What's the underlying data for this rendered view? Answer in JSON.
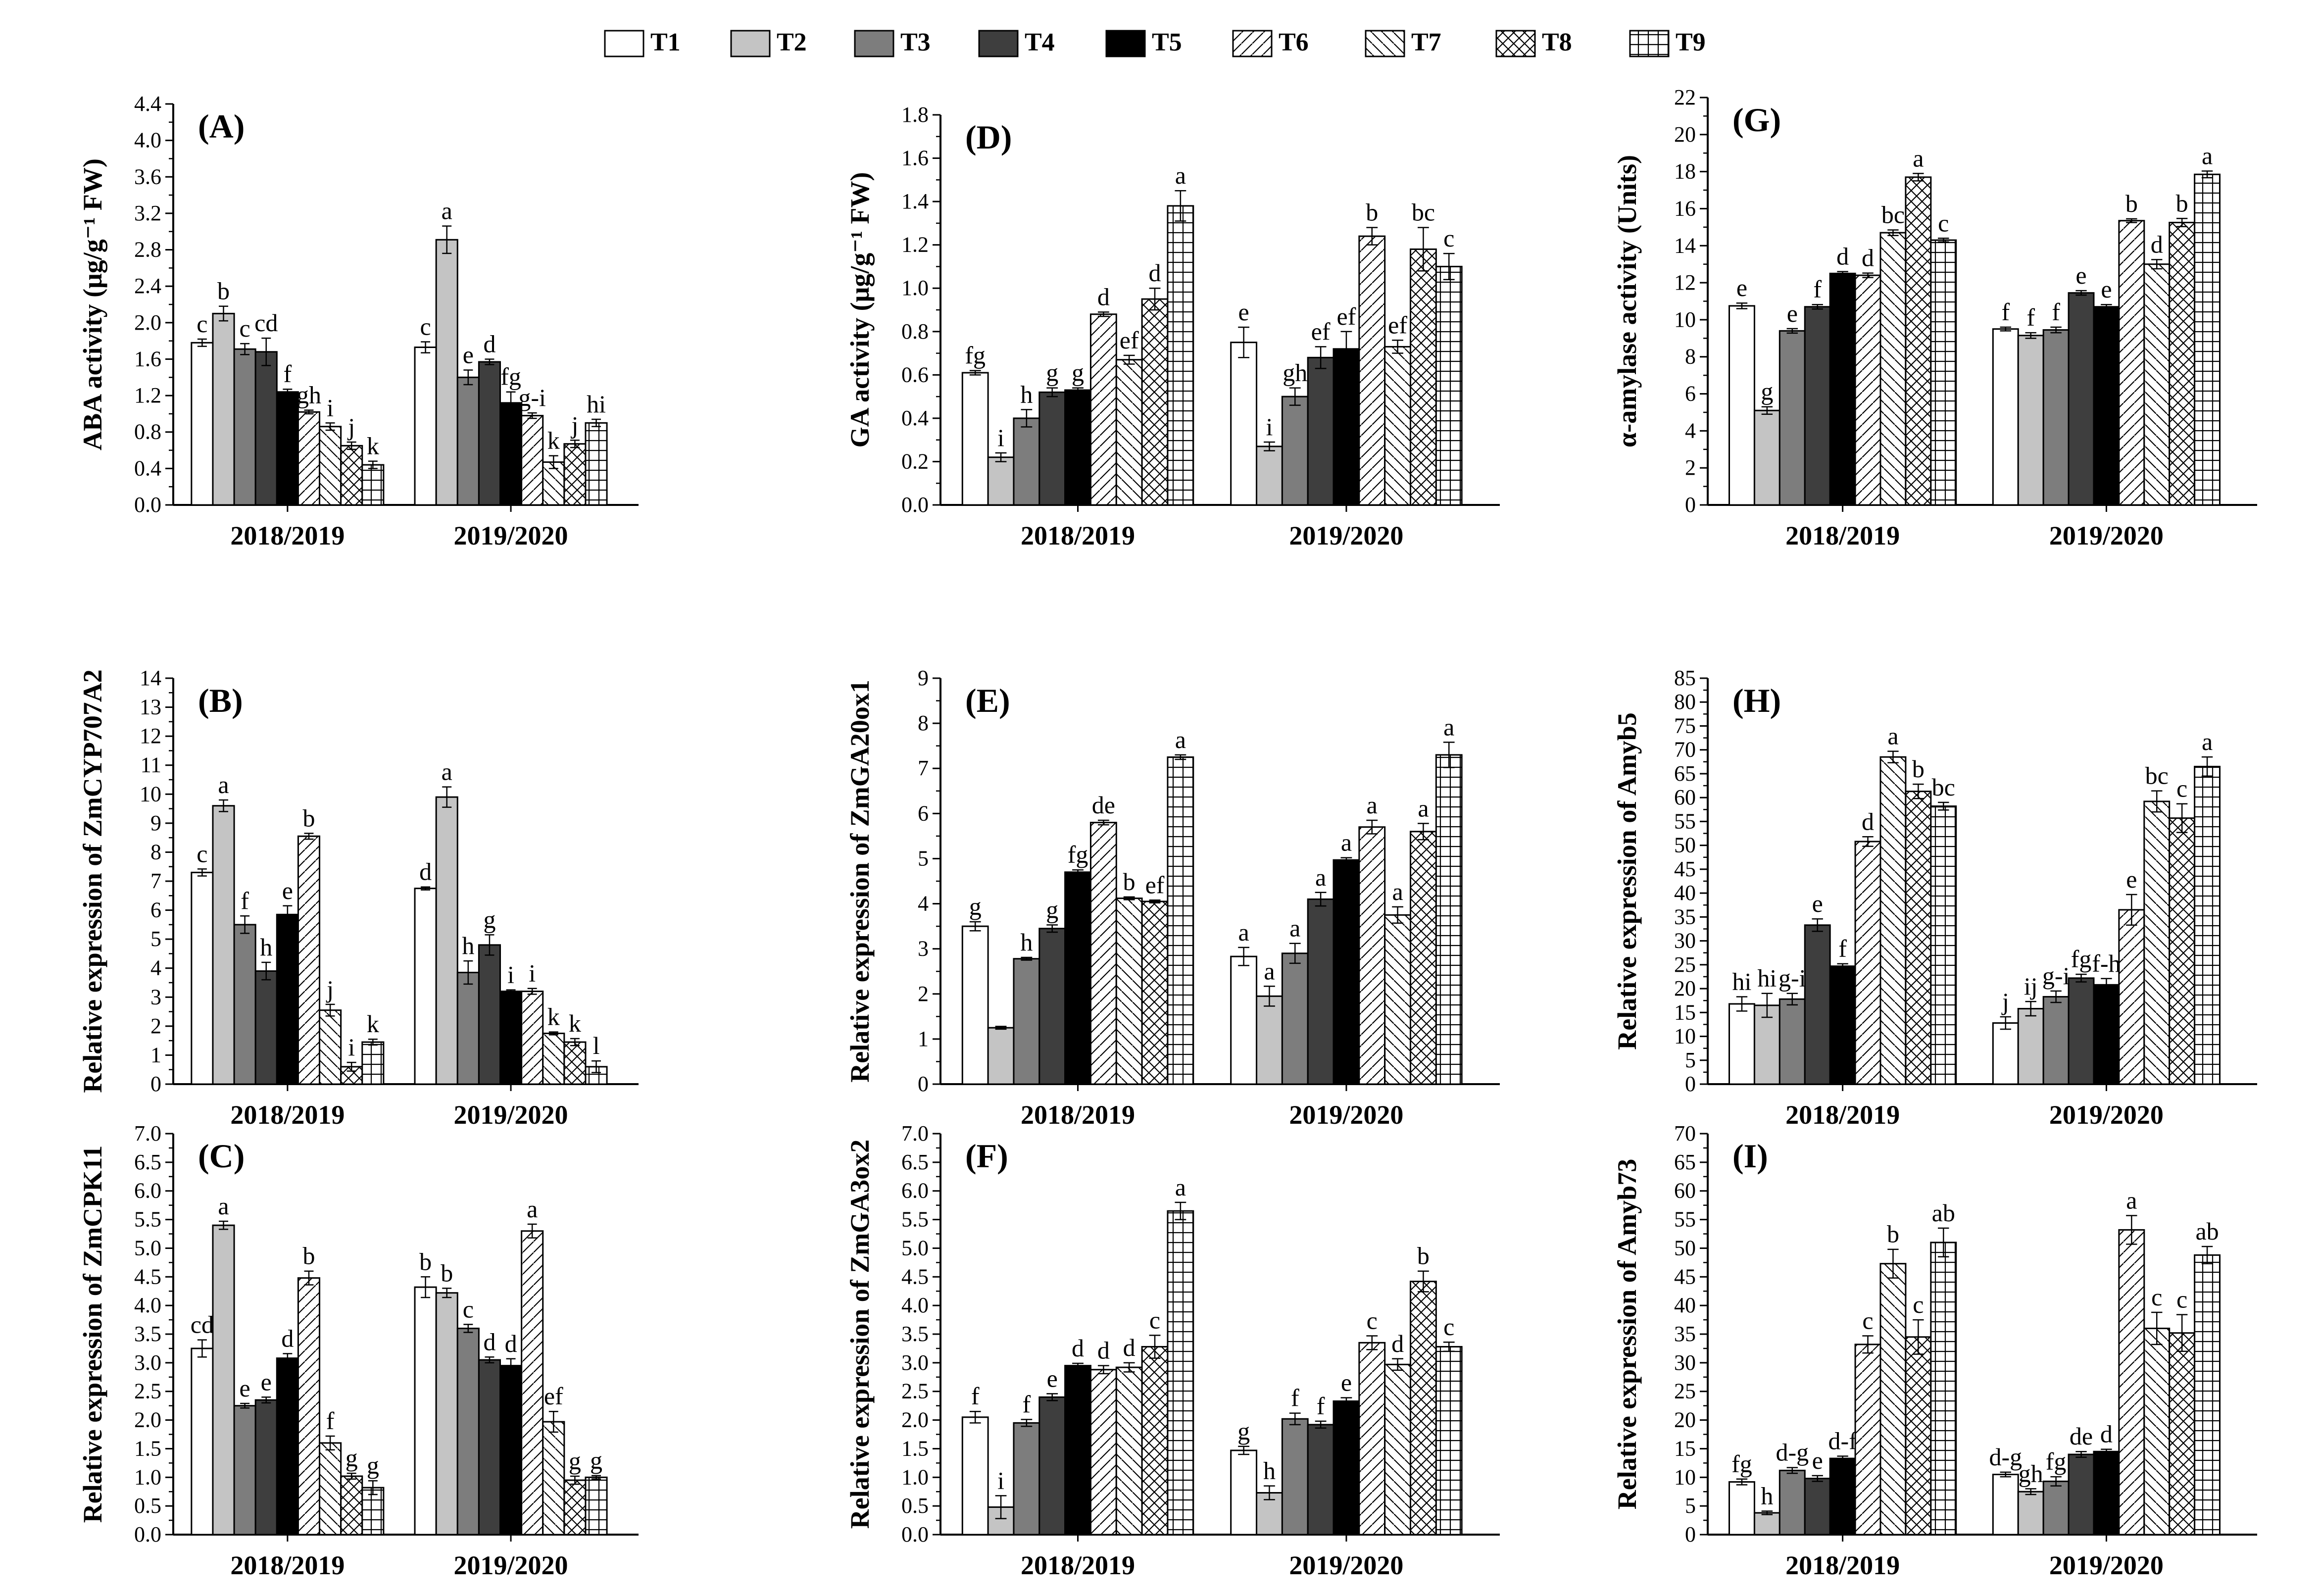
{
  "legend": [
    "T1",
    "T2",
    "T3",
    "T4",
    "T5",
    "T6",
    "T7",
    "T8",
    "T9"
  ],
  "chart_data": [
    {
      "panel": "(A)",
      "type": "bar",
      "ylabel": "ABA activity (μg/g⁻¹ FW)",
      "ylim": [
        0,
        4.4
      ],
      "yticks": [
        "0.0",
        "0.4",
        "0.8",
        "1.2",
        "1.6",
        "2.0",
        "2.4",
        "2.8",
        "3.2",
        "3.6",
        "4.0",
        "4.4"
      ],
      "groups": [
        "2018/2019",
        "2019/2020"
      ],
      "values": [
        [
          1.78,
          2.1,
          1.71,
          1.68,
          1.24,
          1.02,
          0.86,
          0.65,
          0.44
        ],
        [
          1.73,
          2.91,
          1.4,
          1.57,
          1.12,
          0.98,
          0.47,
          0.67,
          0.9
        ]
      ],
      "errors": [
        [
          0.04,
          0.08,
          0.06,
          0.15,
          0.03,
          0.02,
          0.04,
          0.04,
          0.04
        ],
        [
          0.06,
          0.15,
          0.08,
          0.03,
          0.12,
          0.03,
          0.07,
          0.04,
          0.04
        ]
      ],
      "letters": [
        [
          "c",
          "b",
          "c",
          "cd",
          "f",
          "gh",
          "i",
          "j",
          "k"
        ],
        [
          "c",
          "a",
          "e",
          "d",
          "fg",
          "g-i",
          "k",
          "j",
          "hi"
        ]
      ]
    },
    {
      "panel": "(B)",
      "type": "bar",
      "ylabel": "Relative expression of ZmCYP707A2",
      "ylim": [
        0,
        14
      ],
      "yticks": [
        "0",
        "1",
        "2",
        "3",
        "4",
        "5",
        "6",
        "7",
        "8",
        "9",
        "10",
        "11",
        "12",
        "13",
        "14"
      ],
      "groups": [
        "2018/2019",
        "2019/2020"
      ],
      "values": [
        [
          7.3,
          9.6,
          5.5,
          3.9,
          5.85,
          8.55,
          2.55,
          0.6,
          1.45
        ],
        [
          6.75,
          9.9,
          3.85,
          4.8,
          3.2,
          3.2,
          1.75,
          1.45,
          0.6
        ]
      ],
      "errors": [
        [
          0.12,
          0.2,
          0.3,
          0.3,
          0.3,
          0.1,
          0.2,
          0.15,
          0.1
        ],
        [
          0.05,
          0.35,
          0.4,
          0.35,
          0.05,
          0.1,
          0.05,
          0.12,
          0.2
        ]
      ],
      "letters": [
        [
          "c",
          "a",
          "f",
          "h",
          "e",
          "b",
          "j",
          "i",
          "k"
        ],
        [
          "d",
          "a",
          "h",
          "g",
          "i",
          "i",
          "k",
          "k",
          "l"
        ]
      ]
    },
    {
      "panel": "(C)",
      "type": "bar",
      "ylabel": "Relative expression of ZmCPK11",
      "ylim": [
        0,
        7
      ],
      "yticks": [
        "0.0",
        "0.5",
        "1.0",
        "1.5",
        "2.0",
        "2.5",
        "3.0",
        "3.5",
        "4.0",
        "4.5",
        "5.0",
        "5.5",
        "6.0",
        "6.5",
        "7.0"
      ],
      "groups": [
        "2018/2019",
        "2019/2020"
      ],
      "values": [
        [
          3.25,
          5.4,
          2.25,
          2.35,
          3.08,
          4.48,
          1.6,
          1.02,
          0.82
        ],
        [
          4.32,
          4.22,
          3.6,
          3.05,
          2.95,
          5.3,
          1.97,
          0.95,
          1.0
        ]
      ],
      "errors": [
        [
          0.15,
          0.07,
          0.04,
          0.05,
          0.08,
          0.12,
          0.12,
          0.05,
          0.12
        ],
        [
          0.18,
          0.08,
          0.07,
          0.05,
          0.12,
          0.12,
          0.18,
          0.07,
          0.03
        ]
      ],
      "letters": [
        [
          "cd",
          "a",
          "e",
          "e",
          "d",
          "b",
          "f",
          "g",
          "g"
        ],
        [
          "b",
          "b",
          "c",
          "d",
          "d",
          "a",
          "ef",
          "g",
          "g"
        ]
      ]
    },
    {
      "panel": "(D)",
      "type": "bar",
      "ylabel": "GA activity (μg/g⁻¹ FW)",
      "ylim": [
        0,
        1.8
      ],
      "yticks": [
        "0.0",
        "0.2",
        "0.4",
        "0.6",
        "0.8",
        "1.0",
        "1.2",
        "1.4",
        "1.6",
        "1.8"
      ],
      "groups": [
        "2018/2019",
        "2019/2020"
      ],
      "values": [
        [
          0.61,
          0.22,
          0.4,
          0.52,
          0.53,
          0.88,
          0.67,
          0.95,
          1.38
        ],
        [
          0.75,
          0.27,
          0.5,
          0.68,
          0.72,
          1.24,
          0.73,
          1.18,
          1.1
        ]
      ],
      "errors": [
        [
          0.01,
          0.02,
          0.04,
          0.02,
          0.01,
          0.01,
          0.02,
          0.05,
          0.07
        ],
        [
          0.07,
          0.02,
          0.04,
          0.05,
          0.08,
          0.04,
          0.03,
          0.1,
          0.06
        ]
      ],
      "letters": [
        [
          "fg",
          "i",
          "h",
          "g",
          "g",
          "d",
          "ef",
          "d",
          "a"
        ],
        [
          "e",
          "i",
          "gh",
          "ef",
          "ef",
          "b",
          "ef",
          "bc",
          "c"
        ]
      ]
    },
    {
      "panel": "(E)",
      "type": "bar",
      "ylabel": "Relative expression of ZmGA20ox1",
      "ylim": [
        0,
        9
      ],
      "yticks": [
        "0",
        "1",
        "2",
        "3",
        "4",
        "5",
        "6",
        "7",
        "8",
        "9"
      ],
      "groups": [
        "2018/2019",
        "2019/2020"
      ],
      "values": [
        [
          3.5,
          1.25,
          2.78,
          3.45,
          4.7,
          5.8,
          4.12,
          4.05,
          7.25
        ],
        [
          2.83,
          1.95,
          2.9,
          4.1,
          4.97,
          5.7,
          3.75,
          5.6,
          7.3
        ]
      ],
      "errors": [
        [
          0.1,
          0.03,
          0.03,
          0.08,
          0.05,
          0.05,
          0.03,
          0.03,
          0.05
        ],
        [
          0.2,
          0.22,
          0.22,
          0.15,
          0.05,
          0.15,
          0.18,
          0.18,
          0.28
        ]
      ],
      "letters": [
        [
          "g",
          "",
          "h",
          "g",
          "fg",
          "de",
          "b",
          "ef",
          "a"
        ],
        [
          "a",
          "a",
          "a",
          "a",
          "a",
          "a",
          "a",
          "a",
          "a"
        ]
      ]
    },
    {
      "panel": "(F)",
      "type": "bar",
      "ylabel": "Relative expression of ZmGA3ox2",
      "ylim": [
        0,
        7
      ],
      "yticks": [
        "0.0",
        "0.5",
        "1.0",
        "1.5",
        "2.0",
        "2.5",
        "3.0",
        "3.5",
        "4.0",
        "4.5",
        "5.0",
        "5.5",
        "6.0",
        "6.5",
        "7.0"
      ],
      "groups": [
        "2018/2019",
        "2019/2020"
      ],
      "values": [
        [
          2.05,
          0.48,
          1.95,
          2.4,
          2.95,
          2.88,
          2.92,
          3.28,
          5.65
        ],
        [
          1.47,
          0.73,
          2.02,
          1.92,
          2.33,
          3.35,
          2.97,
          4.42,
          3.28
        ]
      ],
      "errors": [
        [
          0.1,
          0.2,
          0.06,
          0.06,
          0.04,
          0.07,
          0.08,
          0.2,
          0.15
        ],
        [
          0.07,
          0.12,
          0.1,
          0.06,
          0.06,
          0.12,
          0.1,
          0.18,
          0.08
        ]
      ],
      "letters": [
        [
          "f",
          "i",
          "f",
          "e",
          "d",
          "d",
          "d",
          "c",
          "a"
        ],
        [
          "g",
          "h",
          "f",
          "f",
          "e",
          "c",
          "d",
          "b",
          "c"
        ]
      ]
    },
    {
      "panel": "(G)",
      "type": "bar",
      "ylabel": "α-amylase activity (Units)",
      "ylim": [
        0,
        22
      ],
      "yticks": [
        "0",
        "2",
        "4",
        "6",
        "8",
        "10",
        "12",
        "14",
        "16",
        "18",
        "20",
        "22"
      ],
      "groups": [
        "2018/2019",
        "2019/2020"
      ],
      "values": [
        [
          10.75,
          5.1,
          9.4,
          10.7,
          12.5,
          12.4,
          14.7,
          17.7,
          14.3
        ],
        [
          9.5,
          9.15,
          9.45,
          11.45,
          10.7,
          15.35,
          13.0,
          15.25,
          17.85
        ]
      ],
      "errors": [
        [
          0.15,
          0.2,
          0.12,
          0.12,
          0.1,
          0.12,
          0.15,
          0.2,
          0.1
        ],
        [
          0.1,
          0.15,
          0.15,
          0.12,
          0.12,
          0.1,
          0.25,
          0.22,
          0.18
        ]
      ],
      "letters": [
        [
          "e",
          "g",
          "e",
          "f",
          "d",
          "d",
          "bc",
          "a",
          "c"
        ],
        [
          "f",
          "f",
          "f",
          "e",
          "e",
          "b",
          "d",
          "b",
          "a"
        ]
      ]
    },
    {
      "panel": "(H)",
      "type": "bar",
      "ylabel": "Relative expression of Amyb5",
      "ylim": [
        0,
        85
      ],
      "yticks": [
        "0",
        "5",
        "10",
        "15",
        "20",
        "25",
        "30",
        "35",
        "40",
        "45",
        "50",
        "55",
        "60",
        "65",
        "70",
        "75",
        "80",
        "85"
      ],
      "groups": [
        "2018/2019",
        "2019/2020"
      ],
      "values": [
        [
          16.8,
          16.5,
          17.8,
          33.3,
          24.7,
          50.8,
          68.5,
          61.3,
          58.2
        ],
        [
          12.8,
          15.8,
          18.3,
          22.2,
          20.8,
          36.5,
          59.2,
          55.7,
          66.5
        ]
      ],
      "errors": [
        [
          1.5,
          2.5,
          1.2,
          1.3,
          0.5,
          1.0,
          1.2,
          1.5,
          0.8
        ],
        [
          1.3,
          1.5,
          1.2,
          0.8,
          1.3,
          3.2,
          2.2,
          3.0,
          2.0
        ]
      ],
      "letters": [
        [
          "hi",
          "hi",
          "g-i",
          "e",
          "f",
          "d",
          "a",
          "b",
          "bc"
        ],
        [
          "j",
          "ij",
          "g-i",
          "fg",
          "f-h",
          "e",
          "bc",
          "c",
          "a"
        ]
      ]
    },
    {
      "panel": "(I)",
      "type": "bar",
      "ylabel": "Relative expression of Amyb73",
      "ylim": [
        0,
        70
      ],
      "yticks": [
        "0",
        "5",
        "10",
        "15",
        "20",
        "25",
        "30",
        "35",
        "40",
        "45",
        "50",
        "55",
        "60",
        "65",
        "70"
      ],
      "groups": [
        "2018/2019",
        "2019/2020"
      ],
      "values": [
        [
          9.2,
          3.8,
          11.2,
          9.8,
          13.3,
          33.2,
          47.3,
          34.5,
          51.0
        ],
        [
          10.5,
          7.5,
          9.3,
          14.0,
          14.5,
          53.2,
          36.0,
          35.2,
          48.8
        ]
      ],
      "errors": [
        [
          0.5,
          0.3,
          0.5,
          0.5,
          0.4,
          1.5,
          2.5,
          3.0,
          2.5
        ],
        [
          0.4,
          0.5,
          0.8,
          0.5,
          0.4,
          2.5,
          2.8,
          3.2,
          1.5
        ]
      ],
      "letters": [
        [
          "fg",
          "h",
          "d-g",
          "e",
          "d-f",
          "c",
          "b",
          "c",
          "ab"
        ],
        [
          "d-g",
          "gh",
          "fg",
          "de",
          "d",
          "a",
          "c",
          "c",
          "ab"
        ]
      ]
    }
  ]
}
